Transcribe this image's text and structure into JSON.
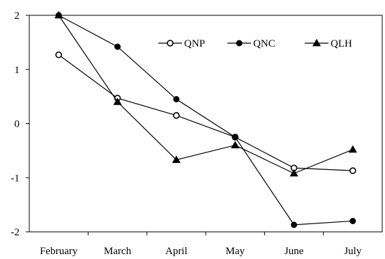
{
  "chart_data": {
    "type": "line",
    "categories": [
      "February",
      "March",
      "April",
      "May",
      "June",
      "July"
    ],
    "series": [
      {
        "name": "QNP",
        "marker": "open-circle",
        "values": [
          1.27,
          0.47,
          0.15,
          -0.25,
          -0.82,
          -0.87
        ]
      },
      {
        "name": "QNC",
        "marker": "filled-circle",
        "values": [
          2.0,
          1.42,
          0.45,
          -0.25,
          -1.87,
          -1.8
        ]
      },
      {
        "name": "QLH",
        "marker": "triangle",
        "values": [
          2.0,
          0.4,
          -0.67,
          -0.4,
          -0.92,
          -0.48
        ]
      }
    ],
    "ylim": [
      -2,
      2
    ],
    "yticks": [
      "2",
      "1",
      "0",
      "-1",
      "-2"
    ],
    "legend_position": "top-right",
    "grid": false
  }
}
